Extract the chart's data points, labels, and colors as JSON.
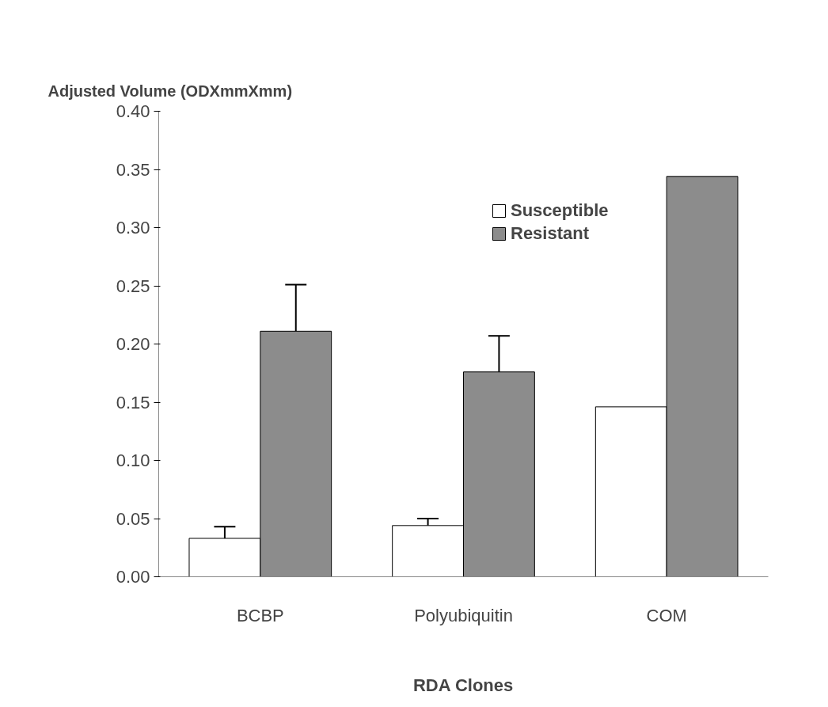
{
  "chart_data": {
    "type": "bar",
    "xlabel": "RDA Clones",
    "ylabel": "Adjusted Volume (ODXmmXmm)",
    "categories": [
      "BCBP",
      "Polyubiquitin",
      "COM"
    ],
    "series": [
      {
        "name": "Susceptible",
        "color": "#ffffff",
        "values": [
          0.033,
          0.044,
          0.146
        ],
        "errors": [
          [
            0.033,
            0.043
          ],
          [
            0.044,
            0.05
          ],
          null
        ]
      },
      {
        "name": "Resistant",
        "color": "#8c8c8c",
        "values": [
          0.211,
          0.176,
          0.344
        ],
        "errors": [
          [
            0.211,
            0.251
          ],
          [
            0.176,
            0.207
          ],
          null
        ]
      }
    ],
    "ylim": [
      0,
      0.4
    ],
    "yticks": [
      {
        "value": 0,
        "label": "0.00"
      },
      {
        "value": 0.05,
        "label": "0.05"
      },
      {
        "value": 0.1,
        "label": "0.10"
      },
      {
        "value": 0.15,
        "label": "0.15"
      },
      {
        "value": 0.2,
        "label": "0.20"
      },
      {
        "value": 0.25,
        "label": "0.25"
      },
      {
        "value": 0.3,
        "label": "0.30"
      },
      {
        "value": 0.35,
        "label": "0.35"
      },
      {
        "value": 0.4,
        "label": "0.40"
      }
    ],
    "grid": false,
    "legend": "top right"
  }
}
